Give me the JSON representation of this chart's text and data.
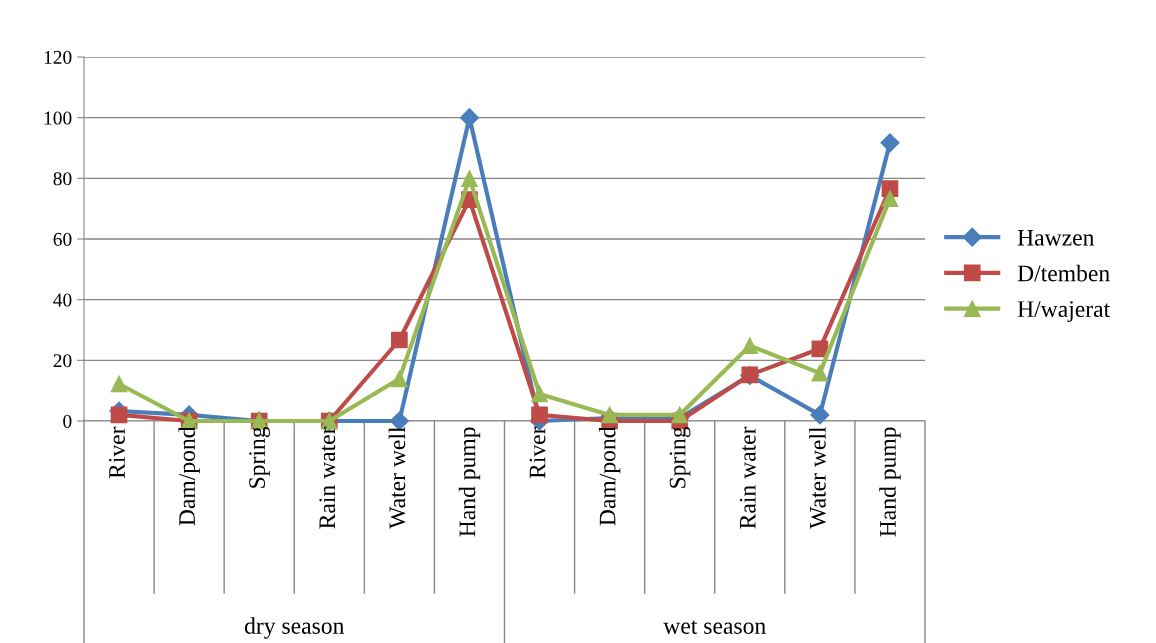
{
  "chart_data": {
    "type": "line",
    "categories": [
      "River",
      "Dam/pond",
      "Spring",
      "Rain water",
      "Water well",
      "Hand pump",
      "River",
      "Dam/pond",
      "Spring",
      "Rain water",
      "Water well",
      "Hand pump"
    ],
    "series": [
      {
        "name": "Hawzen",
        "color": "#4a7ebb",
        "marker": "diamond",
        "values": [
          3.3,
          2,
          0,
          0,
          0,
          100,
          0,
          1,
          1,
          15,
          2,
          91.7
        ]
      },
      {
        "name": "D/temben",
        "color": "#be4b48",
        "marker": "square",
        "values": [
          2,
          0,
          0,
          0,
          26.7,
          73,
          2,
          0,
          0,
          15.2,
          23.8,
          76.6
        ]
      },
      {
        "name": "H/wajerat",
        "color": "#98b954",
        "marker": "triangle",
        "values": [
          12.2,
          0,
          0,
          0,
          13.9,
          79.9,
          8.9,
          2,
          2,
          24.8,
          15.8,
          73.3
        ]
      }
    ],
    "annotations": [
      "dry season",
      "wet season"
    ],
    "ylim": [
      0,
      120
    ],
    "yticks": [
      0,
      20,
      40,
      60,
      80,
      100,
      120
    ],
    "grid": "y",
    "legend": "right",
    "line_style": "solid"
  }
}
